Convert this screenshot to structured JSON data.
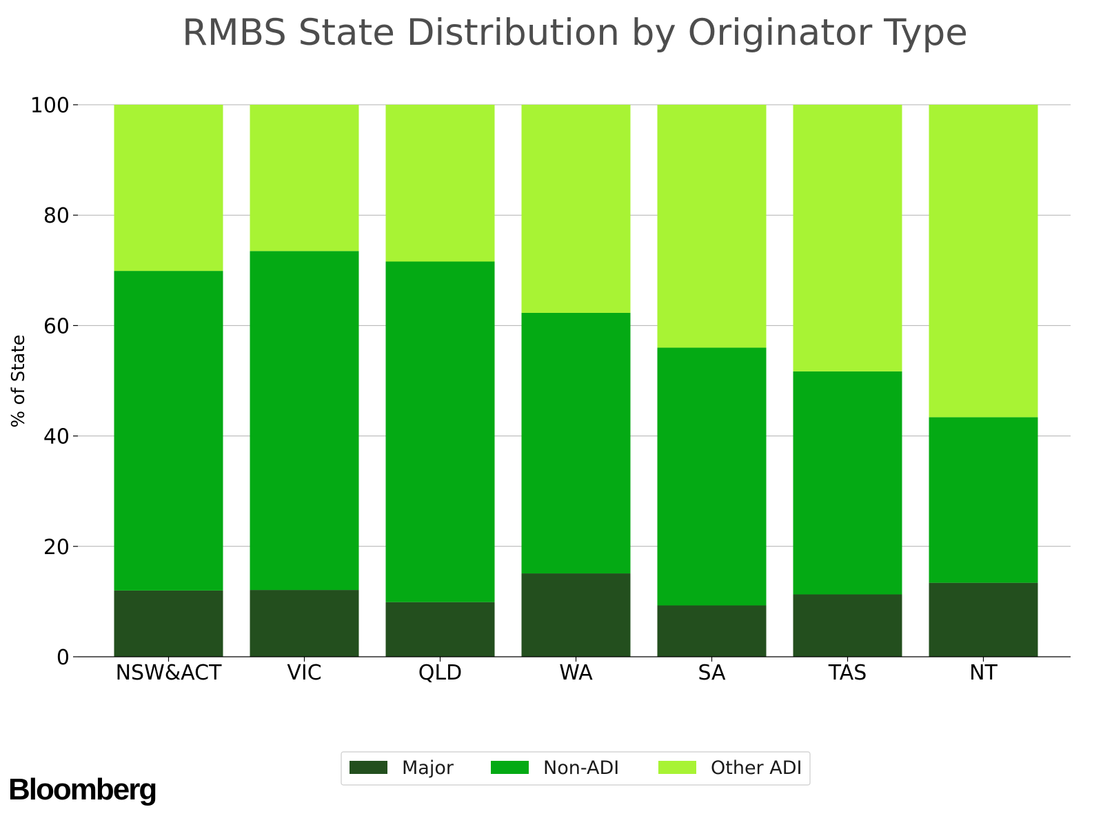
{
  "chart_data": {
    "type": "bar",
    "stacked": true,
    "title": "RMBS State Distribution by Originator Type",
    "xlabel": "",
    "ylabel": "% of State",
    "ylim": [
      0,
      100
    ],
    "yticks": [
      "0",
      "20",
      "40",
      "60",
      "80",
      "100"
    ],
    "grid": "horizontal",
    "legend_position": "bottom",
    "categories": [
      "NSW&ACT",
      "VIC",
      "QLD",
      "WA",
      "SA",
      "TAS",
      "NT"
    ],
    "series": [
      {
        "name": "Major",
        "color": "#234f1e",
        "values": [
          12.0,
          12.1,
          9.9,
          15.1,
          9.3,
          11.3,
          13.4
        ]
      },
      {
        "name": "Non-ADI",
        "color": "#04aa14",
        "values": [
          57.9,
          61.4,
          61.7,
          47.2,
          46.7,
          40.4,
          30.0
        ]
      },
      {
        "name": "Other ADI",
        "color": "#a8f334",
        "values": [
          30.1,
          26.5,
          28.4,
          37.7,
          44.0,
          48.3,
          56.6
        ]
      }
    ]
  },
  "brand": "Bloomberg"
}
